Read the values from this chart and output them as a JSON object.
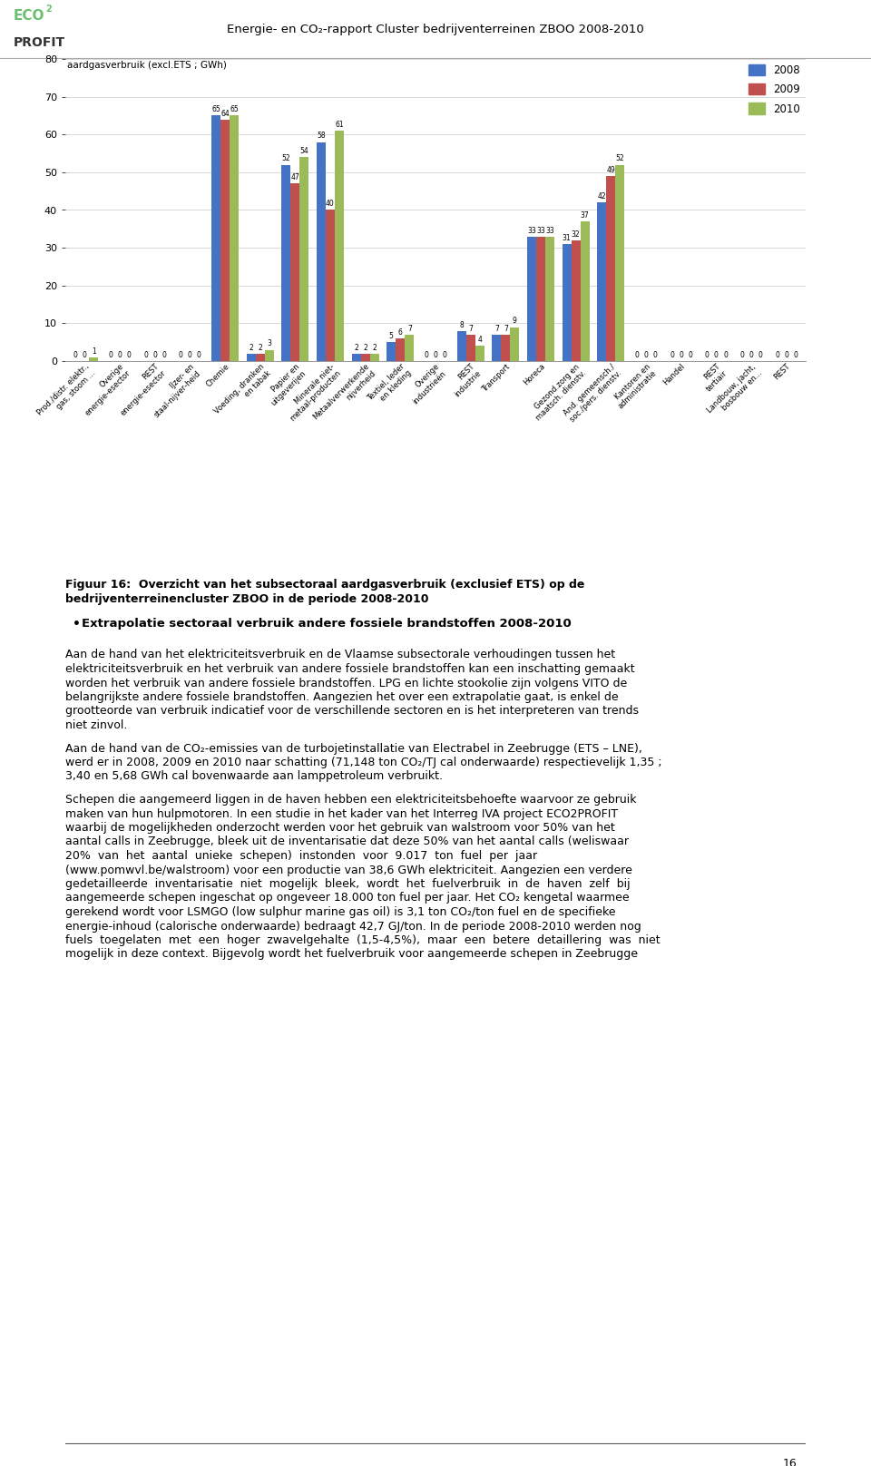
{
  "title_header": "Energie- en CO₂-rapport Cluster bedrijventerreinen ZBOO 2008-2010",
  "chart_ylabel": "aardgasverbruik (excl.ETS ; GWh)",
  "ylim": [
    0,
    80
  ],
  "yticks": [
    0,
    10,
    20,
    30,
    40,
    50,
    60,
    70,
    80
  ],
  "categories": [
    "Prod./distr. elektr.,\ngas, stoom ...",
    "Overige\nenergie­esector",
    "REST\nenergie­esector",
    "IJzer- en\nstaal­nijver­heid",
    "Chemie",
    "Voeding, dranken\nen tabak",
    "Papier en\nuitgeverijen",
    "Minerale niet-\nmetaal­producten",
    "Metaalverwerkende\nnijverheid",
    "Textiel, leder\nen kleding",
    "Overige\nindustrieën",
    "REST\nindustrie",
    "Transport",
    "Horeca",
    "Gezond.zorg en\nmaatsch. dienstv.",
    "And. gemeensch./\nsoc./pers. dienstv.",
    "Kantoren en\nadministratie",
    "Handel",
    "REST\ntertiair",
    "Landbouw, jacht,\nbosbouw en...",
    "REST"
  ],
  "values_2008": [
    0,
    0,
    0,
    0,
    65,
    2,
    52,
    58,
    2,
    5,
    0,
    8,
    7,
    33,
    31,
    42,
    0,
    0,
    0,
    0,
    0
  ],
  "values_2009": [
    0,
    0,
    0,
    0,
    64,
    2,
    47,
    40,
    2,
    6,
    0,
    7,
    7,
    33,
    32,
    49,
    0,
    0,
    0,
    0,
    0
  ],
  "values_2010": [
    1,
    0,
    0,
    0,
    65,
    3,
    54,
    61,
    2,
    7,
    0,
    4,
    9,
    33,
    37,
    52,
    0,
    0,
    0,
    0,
    0
  ],
  "color_2008": "#4472C4",
  "color_2009": "#C0504D",
  "color_2010": "#9BBB59",
  "page_number": "16",
  "fig16_label": "Figuur 16:",
  "fig16_rest": "  Overzicht van het subsectoraal aardgasverbruik (exclusief ETS) op de bedrijventerreinencluster ZBOO in de periode 2008-2010",
  "bullet_text": "Extrapolatie sectoraal verbruik andere fossiele brandstoffen 2008-2010",
  "para1": "Aan de hand van het elektriciteitsverbruik en de Vlaamse subsectorale verhoudingen tussen het elektriciteitsverbruik en het verbruik van andere fossiele brandstoffen kan een inschatting gemaakt worden het verbruik van andere fossiele brandstoffen. LPG en lichte stookolie zijn volgens VITO de belangrijkste andere fossiele brandstoffen. Aangezien het over een extrapolatie gaat, is enkel de grootteorde van verbruik indicatief voor de verschillende sectoren en is het interpreteren van trends niet zinvol.",
  "para2": "Aan de hand van de CO₂-emissies van de turbojetinstallatie van Electrabel in Zeebrugge (ETS – LNE), werd er in 2008, 2009 en 2010 naar schatting (71,148 ton CO₂/TJ cal onderwaarde) respectievelijk 1,35 ; 3,40 en 5,68 GWh cal bovenwaarde aan lamppetroleum verbruikt.",
  "para3": "Schepen die aangemeerd liggen in de haven hebben een elektriciteitsbehoefte waarvoor ze gebruik maken van hun hulpmotoren. In een studie in het kader van het Interreg IVA project ECO2PROFIT waarbij de mogelijkheden onderzocht werden voor het gebruik van walstroom voor 50% van het aantal calls in Zeebrugge, bleek uit de inventarisatie dat deze 50% van het aantal calls (weliswaar 20% van het aantal unieke schepen) instonden voor 9.017 ton fuel per jaar (www.pomwvl.be/walstroom) voor een productie van 38,6 GWh elektriciteit. Aangezien een verdere gedetailleerde inventarisatie niet mogelijk bleek, wordt het fuelverbruik in de haven zelf bij aangemeerde schepen ingeschat op ongeveer 18.000 ton fuel per jaar. Het CO₂ kengetal waarmee gerekend wordt voor LSMGO (low sulphur marine gas oil) is 3,1 ton CO₂/ton fuel en de specifieke energie-inhoud (calorische onderwaarde) bedraagt 42,7 GJ/ton. In de periode 2008-2010 werden nog fuels toegelaten met een hoger zwavelgehalte (1,5-4,5%), maar een betere detaillering was niet mogelijk in deze context. Bijgevolg wordt het fuelverbruik voor aangemeerde schepen in Zeebrugge"
}
